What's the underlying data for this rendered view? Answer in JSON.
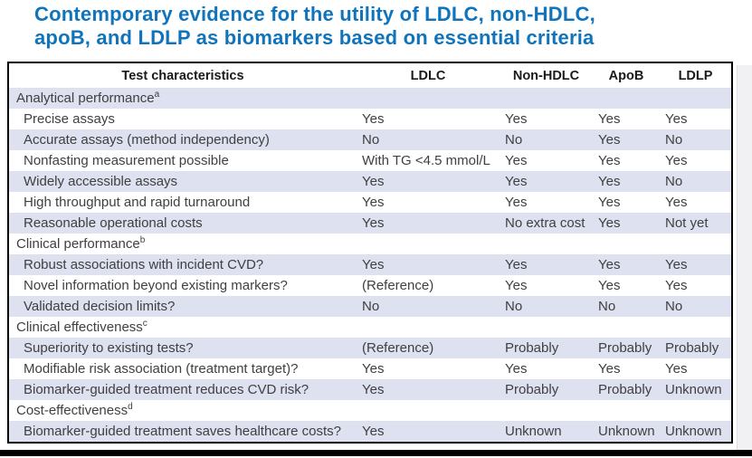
{
  "title": {
    "line1": "Contemporary evidence for the utility of LDLC, non-HDLC,",
    "line2": "apoB, and LDLP as biomarkers based on essential criteria"
  },
  "colors": {
    "title_blue": "#1074bc",
    "row_stripe": "#dde1f0",
    "bottom_bar": "#000000"
  },
  "table": {
    "columns": [
      "Test characteristics",
      "LDLC",
      "Non-HDLC",
      "ApoB",
      "LDLP"
    ],
    "rows": [
      {
        "type": "section",
        "label": "Analytical performance",
        "sup": "a"
      },
      {
        "type": "data",
        "label": "Precise assays",
        "values": [
          "Yes",
          "Yes",
          "Yes",
          "Yes"
        ]
      },
      {
        "type": "data",
        "label": "Accurate assays (method independency)",
        "values": [
          "No",
          "No",
          "Yes",
          "No"
        ]
      },
      {
        "type": "data",
        "label": "Nonfasting measurement possible",
        "values": [
          "With TG <4.5 mmol/L",
          "Yes",
          "Yes",
          "Yes"
        ]
      },
      {
        "type": "data",
        "label": "Widely accessible assays",
        "values": [
          "Yes",
          "Yes",
          "Yes",
          "No"
        ]
      },
      {
        "type": "data",
        "label": "High throughput and rapid turnaround",
        "values": [
          "Yes",
          "Yes",
          "Yes",
          "Yes"
        ]
      },
      {
        "type": "data",
        "label": "Reasonable operational costs",
        "values": [
          "Yes",
          "No extra cost",
          "Yes",
          "Not yet"
        ]
      },
      {
        "type": "section",
        "label": "Clinical performance",
        "sup": "b"
      },
      {
        "type": "data",
        "label": "Robust associations with incident CVD?",
        "values": [
          "Yes",
          "Yes",
          "Yes",
          "Yes"
        ]
      },
      {
        "type": "data",
        "label": "Novel information beyond existing markers?",
        "values": [
          "(Reference)",
          "Yes",
          "Yes",
          "Yes"
        ]
      },
      {
        "type": "data",
        "label": "Validated decision limits?",
        "values": [
          "No",
          "No",
          "No",
          "No"
        ]
      },
      {
        "type": "section",
        "label": "Clinical effectiveness",
        "sup": "c"
      },
      {
        "type": "data",
        "label": "Superiority to existing tests?",
        "values": [
          "(Reference)",
          "Probably",
          "Probably",
          "Probably"
        ]
      },
      {
        "type": "data",
        "label": "Modifiable risk association (treatment target)?",
        "values": [
          "Yes",
          "Yes",
          "Yes",
          "Yes"
        ]
      },
      {
        "type": "data",
        "label": "Biomarker-guided treatment reduces CVD risk?",
        "values": [
          "Yes",
          "Probably",
          "Probably",
          "Unknown"
        ]
      },
      {
        "type": "section",
        "label": "Cost-effectiveness",
        "sup": "d"
      },
      {
        "type": "data",
        "label": "Biomarker-guided treatment saves healthcare costs?",
        "values": [
          "Yes",
          "Unknown",
          "Unknown",
          "Unknown"
        ]
      }
    ]
  }
}
